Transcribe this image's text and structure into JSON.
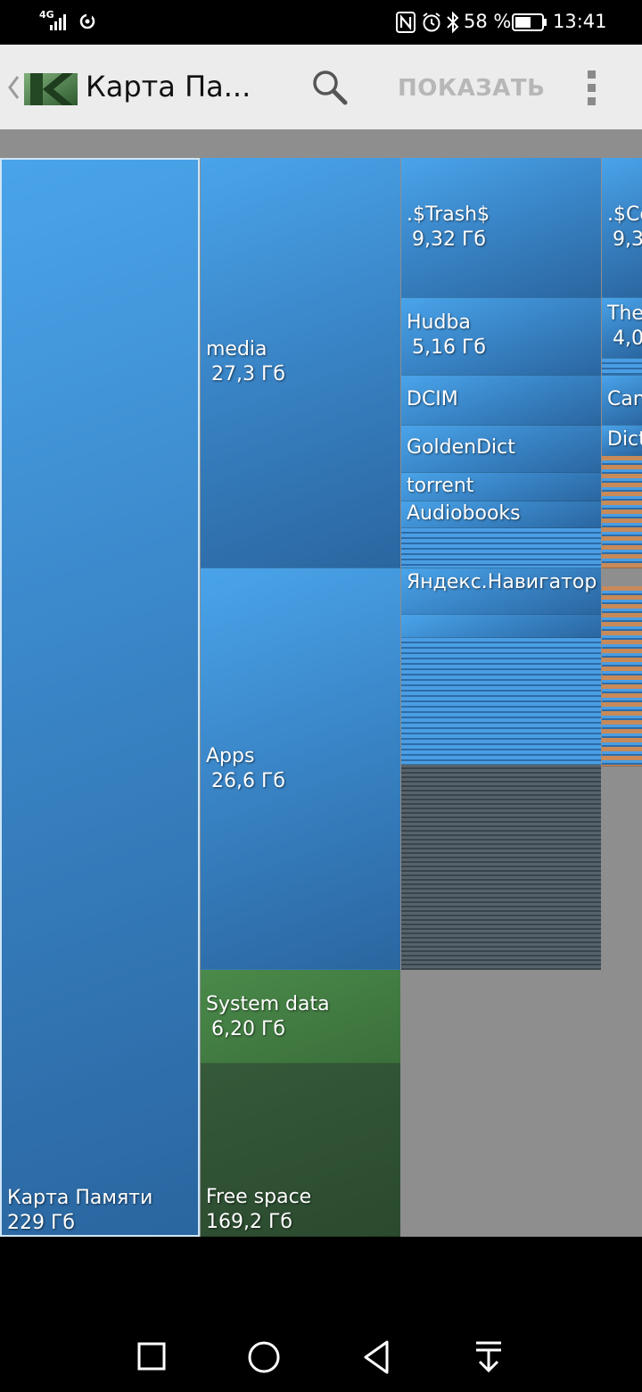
{
  "status_bar": {
    "network": "4G",
    "battery_text": "58 %",
    "time": "13:41"
  },
  "action_bar": {
    "title": "Карта Па...",
    "show_label": "ПОКАЗАТЬ",
    "icons": [
      "back-chevron-icon",
      "app-logo-icon",
      "search-icon",
      "overflow-menu-icon"
    ]
  },
  "treemap": {
    "root": {
      "name": "Карта Памяти",
      "size": "229 Гб"
    },
    "level1": [
      {
        "name": "media",
        "size": "27,3 Гб"
      },
      {
        "name": "Apps",
        "size": "26,6 Гб"
      },
      {
        "name": "System data",
        "size": "6,20 Гб"
      },
      {
        "name": "Free space",
        "size": "169,2 Гб"
      }
    ],
    "media_children": [
      {
        "name": ".$Trash$",
        "size": "9,32 Гб"
      },
      {
        "name": "Hudba",
        "size": "5,16 Гб"
      },
      {
        "name": "DCIM",
        "size": ""
      },
      {
        "name": "GoldenDict",
        "size": ""
      },
      {
        "name": "torrent",
        "size": ""
      },
      {
        "name": "Audiobooks",
        "size": ""
      }
    ],
    "apps_children": [
      {
        "name": "Яндекс.Навигатор",
        "size": ""
      }
    ],
    "col4": [
      {
        "name": ".$Co",
        "size": "9,3"
      },
      {
        "name": "The",
        "size": "4,0"
      },
      {
        "name": "Can",
        "size": ""
      },
      {
        "name": "Dict",
        "size": ""
      }
    ]
  },
  "colors": {
    "folder_blue": "#3a86c8",
    "system_green": "#3b6f3b",
    "free_green": "#2b4a2e",
    "file_orange": "#c88a58",
    "background_gray": "#8e8e8e"
  },
  "nav_bar": {
    "icons": [
      "recent-apps-icon",
      "home-icon",
      "back-icon",
      "notification-pull-icon"
    ]
  }
}
